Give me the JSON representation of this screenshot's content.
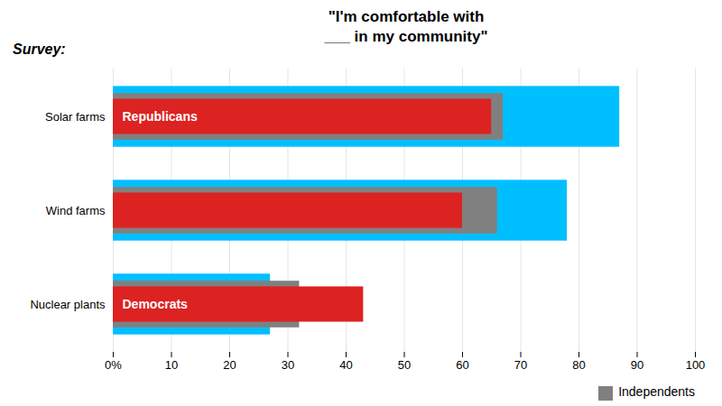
{
  "chart_data": {
    "type": "bar",
    "orientation": "horizontal",
    "title": "\"I'm comfortable with\n___ in my community\"",
    "categories": [
      "Solar farms",
      "Wind farms",
      "Nuclear plants"
    ],
    "series": [
      {
        "name": "Democrats",
        "color": "#00BFFF",
        "values": [
          87,
          78,
          27
        ]
      },
      {
        "name": "Independents",
        "color": "#808080",
        "values": [
          67,
          66,
          32
        ]
      },
      {
        "name": "Republicans",
        "color": "#DD2222",
        "values": [
          65,
          60,
          43
        ]
      }
    ],
    "annotations": [
      {
        "text": "Survey:"
      },
      {
        "text": "Republicans",
        "category": "Solar farms"
      },
      {
        "text": "Democrats",
        "category": "Nuclear plants"
      }
    ],
    "xlim": [
      0,
      100
    ],
    "xticks": [
      {
        "value": 0,
        "label": "0%"
      },
      10,
      20,
      30,
      40,
      50,
      60,
      70,
      80,
      90,
      100
    ],
    "grid": true,
    "legend": "right"
  }
}
